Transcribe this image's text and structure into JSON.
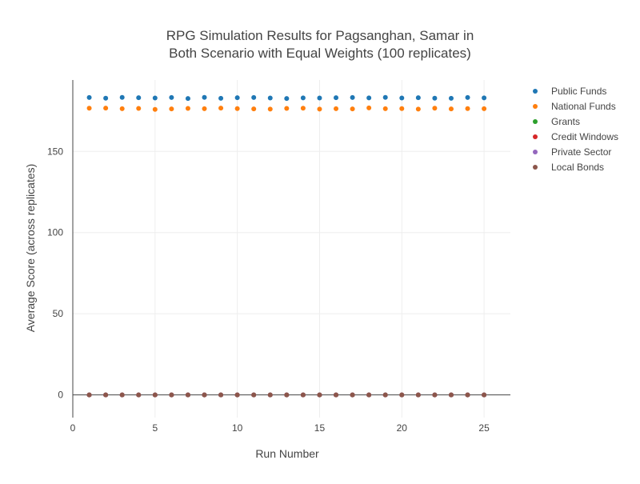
{
  "chart_data": {
    "type": "scatter",
    "title_lines": [
      "RPG Simulation Results for Pagsanghan, Samar in",
      "Both Scenario with Equal Weights (100 replicates)"
    ],
    "xlabel": "Run Number",
    "ylabel": "Average Score (across replicates)",
    "xlim": [
      0,
      26.6
    ],
    "ylim": [
      -14,
      194
    ],
    "xticks": [
      0,
      5,
      10,
      15,
      20,
      25
    ],
    "yticks": [
      0,
      50,
      100,
      150
    ],
    "grid": true,
    "legend_position": "top-right",
    "x": [
      1,
      2,
      3,
      4,
      5,
      6,
      7,
      8,
      9,
      10,
      11,
      12,
      13,
      14,
      15,
      16,
      17,
      18,
      19,
      20,
      21,
      22,
      23,
      24,
      25
    ],
    "series": [
      {
        "name": "Public Funds",
        "color": "#1f77b4",
        "values": [
          183.2,
          182.8,
          183.3,
          183.1,
          182.9,
          183.2,
          182.6,
          183.3,
          182.7,
          183.1,
          183.2,
          182.9,
          182.6,
          183.0,
          182.9,
          183.1,
          183.2,
          183.0,
          183.3,
          182.9,
          183.1,
          182.8,
          182.7,
          183.2,
          183.0
        ]
      },
      {
        "name": "National Funds",
        "color": "#ff7f0e",
        "values": [
          176.6,
          176.7,
          176.3,
          176.5,
          175.9,
          176.2,
          176.5,
          176.3,
          176.7,
          176.4,
          176.2,
          176.1,
          176.5,
          176.6,
          176.1,
          176.3,
          176.2,
          176.8,
          176.3,
          176.4,
          176.1,
          176.6,
          176.2,
          176.4,
          176.3
        ]
      },
      {
        "name": "Grants",
        "color": "#2ca02c",
        "values": [
          0,
          0,
          0,
          0,
          0,
          0,
          0,
          0,
          0,
          0,
          0,
          0,
          0,
          0,
          0,
          0,
          0,
          0,
          0,
          0,
          0,
          0,
          0,
          0,
          0
        ]
      },
      {
        "name": "Credit Windows",
        "color": "#d62728",
        "values": [
          0,
          0,
          0,
          0,
          0,
          0,
          0,
          0,
          0,
          0,
          0,
          0,
          0,
          0,
          0,
          0,
          0,
          0,
          0,
          0,
          0,
          0,
          0,
          0,
          0
        ]
      },
      {
        "name": "Private Sector",
        "color": "#9467bd",
        "values": [
          0,
          0,
          0,
          0,
          0,
          0,
          0,
          0,
          0,
          0,
          0,
          0,
          0,
          0,
          0,
          0,
          0,
          0,
          0,
          0,
          0,
          0,
          0,
          0,
          0
        ]
      },
      {
        "name": "Local Bonds",
        "color": "#8c564b",
        "values": [
          0,
          0,
          0,
          0,
          0,
          0,
          0,
          0,
          0,
          0,
          0,
          0,
          0,
          0,
          0,
          0,
          0,
          0,
          0,
          0,
          0,
          0,
          0,
          0,
          0
        ]
      }
    ]
  }
}
